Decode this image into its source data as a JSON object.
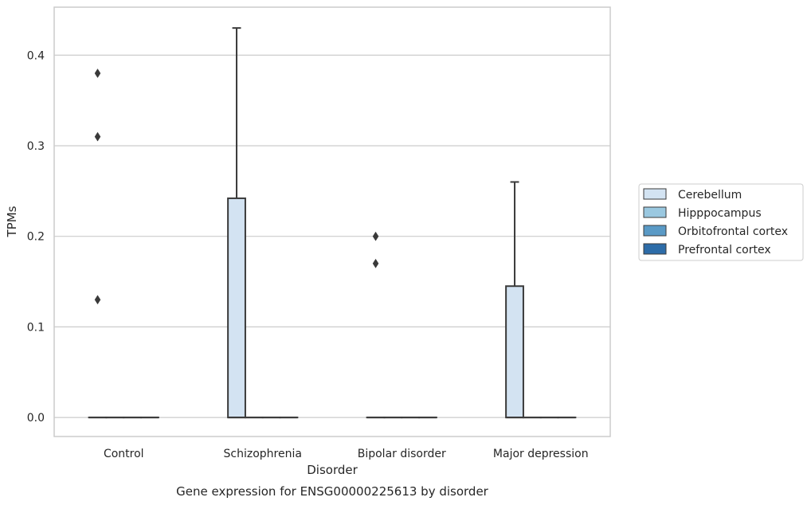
{
  "chart_data": {
    "type": "box",
    "title": "",
    "caption": "Gene expression for ENSG00000225613 by disorder",
    "xlabel": "Disorder",
    "ylabel": "TPMs",
    "ylim": [
      -0.021,
      0.453
    ],
    "yticks": [
      0.0,
      0.1,
      0.2,
      0.3,
      0.4
    ],
    "ytick_labels": [
      "0.0",
      "0.1",
      "0.2",
      "0.3",
      "0.4"
    ],
    "grid": "horizontal",
    "legend_position": "center-right",
    "categories": [
      "Control",
      "Schizophrenia",
      "Bipolar disorder",
      "Major depression"
    ],
    "series": [
      {
        "name": "Cerebellum",
        "color": "#d3e3f2",
        "boxes": [
          {
            "q1": 0.0,
            "median": 0.0,
            "q3": 0.0,
            "whisker_low": 0.0,
            "whisker_high": 0.0,
            "outliers": [
              0.38,
              0.31,
              0.13
            ]
          },
          {
            "q1": 0.0,
            "median": 0.0,
            "q3": 0.242,
            "whisker_low": 0.0,
            "whisker_high": 0.43,
            "outliers": []
          },
          {
            "q1": 0.0,
            "median": 0.0,
            "q3": 0.0,
            "whisker_low": 0.0,
            "whisker_high": 0.0,
            "outliers": [
              0.2,
              0.17
            ]
          },
          {
            "q1": 0.0,
            "median": 0.0,
            "q3": 0.145,
            "whisker_low": 0.0,
            "whisker_high": 0.26,
            "outliers": []
          }
        ]
      },
      {
        "name": "Hipppocampus",
        "color": "#9ac8e0",
        "boxes": [
          {
            "q1": 0.0,
            "median": 0.0,
            "q3": 0.0,
            "whisker_low": 0.0,
            "whisker_high": 0.0,
            "outliers": []
          },
          {
            "q1": 0.0,
            "median": 0.0,
            "q3": 0.0,
            "whisker_low": 0.0,
            "whisker_high": 0.0,
            "outliers": []
          },
          {
            "q1": 0.0,
            "median": 0.0,
            "q3": 0.0,
            "whisker_low": 0.0,
            "whisker_high": 0.0,
            "outliers": []
          },
          {
            "q1": 0.0,
            "median": 0.0,
            "q3": 0.0,
            "whisker_low": 0.0,
            "whisker_high": 0.0,
            "outliers": []
          }
        ]
      },
      {
        "name": "Orbitofrontal cortex",
        "color": "#5a9ac6",
        "boxes": [
          {
            "q1": 0.0,
            "median": 0.0,
            "q3": 0.0,
            "whisker_low": 0.0,
            "whisker_high": 0.0,
            "outliers": []
          },
          {
            "q1": 0.0,
            "median": 0.0,
            "q3": 0.0,
            "whisker_low": 0.0,
            "whisker_high": 0.0,
            "outliers": []
          },
          {
            "q1": 0.0,
            "median": 0.0,
            "q3": 0.0,
            "whisker_low": 0.0,
            "whisker_high": 0.0,
            "outliers": []
          },
          {
            "q1": 0.0,
            "median": 0.0,
            "q3": 0.0,
            "whisker_low": 0.0,
            "whisker_high": 0.0,
            "outliers": []
          }
        ]
      },
      {
        "name": "Prefrontal cortex",
        "color": "#2d6ca8",
        "boxes": [
          {
            "q1": 0.0,
            "median": 0.0,
            "q3": 0.0,
            "whisker_low": 0.0,
            "whisker_high": 0.0,
            "outliers": []
          },
          {
            "q1": 0.0,
            "median": 0.0,
            "q3": 0.0,
            "whisker_low": 0.0,
            "whisker_high": 0.0,
            "outliers": []
          },
          {
            "q1": 0.0,
            "median": 0.0,
            "q3": 0.0,
            "whisker_low": 0.0,
            "whisker_high": 0.0,
            "outliers": []
          },
          {
            "q1": 0.0,
            "median": 0.0,
            "q3": 0.0,
            "whisker_low": 0.0,
            "whisker_high": 0.0,
            "outliers": []
          }
        ]
      }
    ],
    "colors": {
      "grid": "#cccccc",
      "frame": "#cccccc",
      "box_edge": "#3a3a3a",
      "text": "#262626"
    }
  }
}
